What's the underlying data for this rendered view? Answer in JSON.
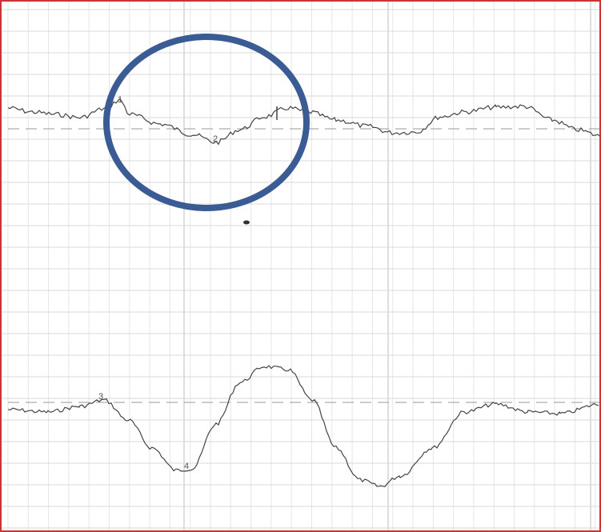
{
  "markers": [
    {
      "label": "1"
    },
    {
      "label": "2"
    },
    {
      "label": "3"
    },
    {
      "label": "4"
    }
  ]
}
